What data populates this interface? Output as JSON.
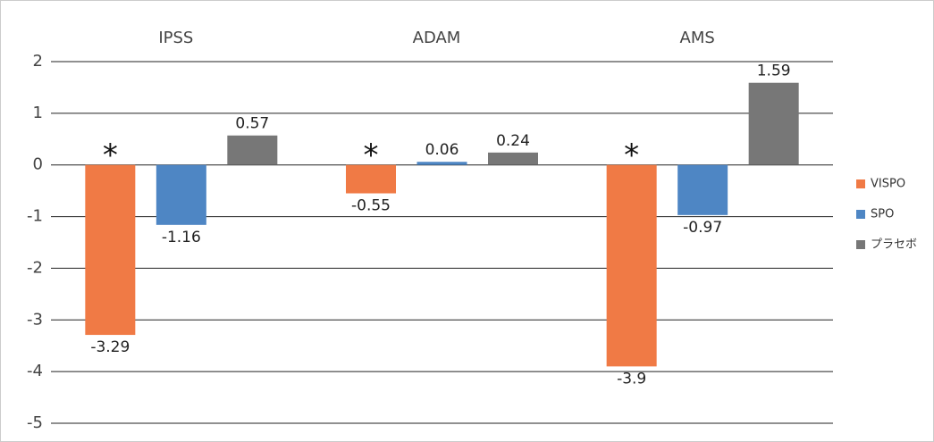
{
  "chart_data": {
    "type": "bar",
    "categories": [
      "IPSS",
      "ADAM",
      "AMS"
    ],
    "series": [
      {
        "name": "VISPO",
        "color": "#f07a45",
        "values": [
          -3.29,
          -0.55,
          -3.9
        ]
      },
      {
        "name": "SPO",
        "color": "#4e86c4",
        "values": [
          -1.16,
          0.06,
          -0.97
        ]
      },
      {
        "name": "プラセボ",
        "color": "#777777",
        "values": [
          0.57,
          0.24,
          1.59
        ]
      }
    ],
    "annotations": [
      "*",
      "*",
      "*"
    ],
    "ylim": [
      -5,
      2
    ],
    "yticks": [
      -5,
      -4,
      -3,
      -2,
      -1,
      0,
      1,
      2
    ],
    "grid": true,
    "legend": "right"
  }
}
